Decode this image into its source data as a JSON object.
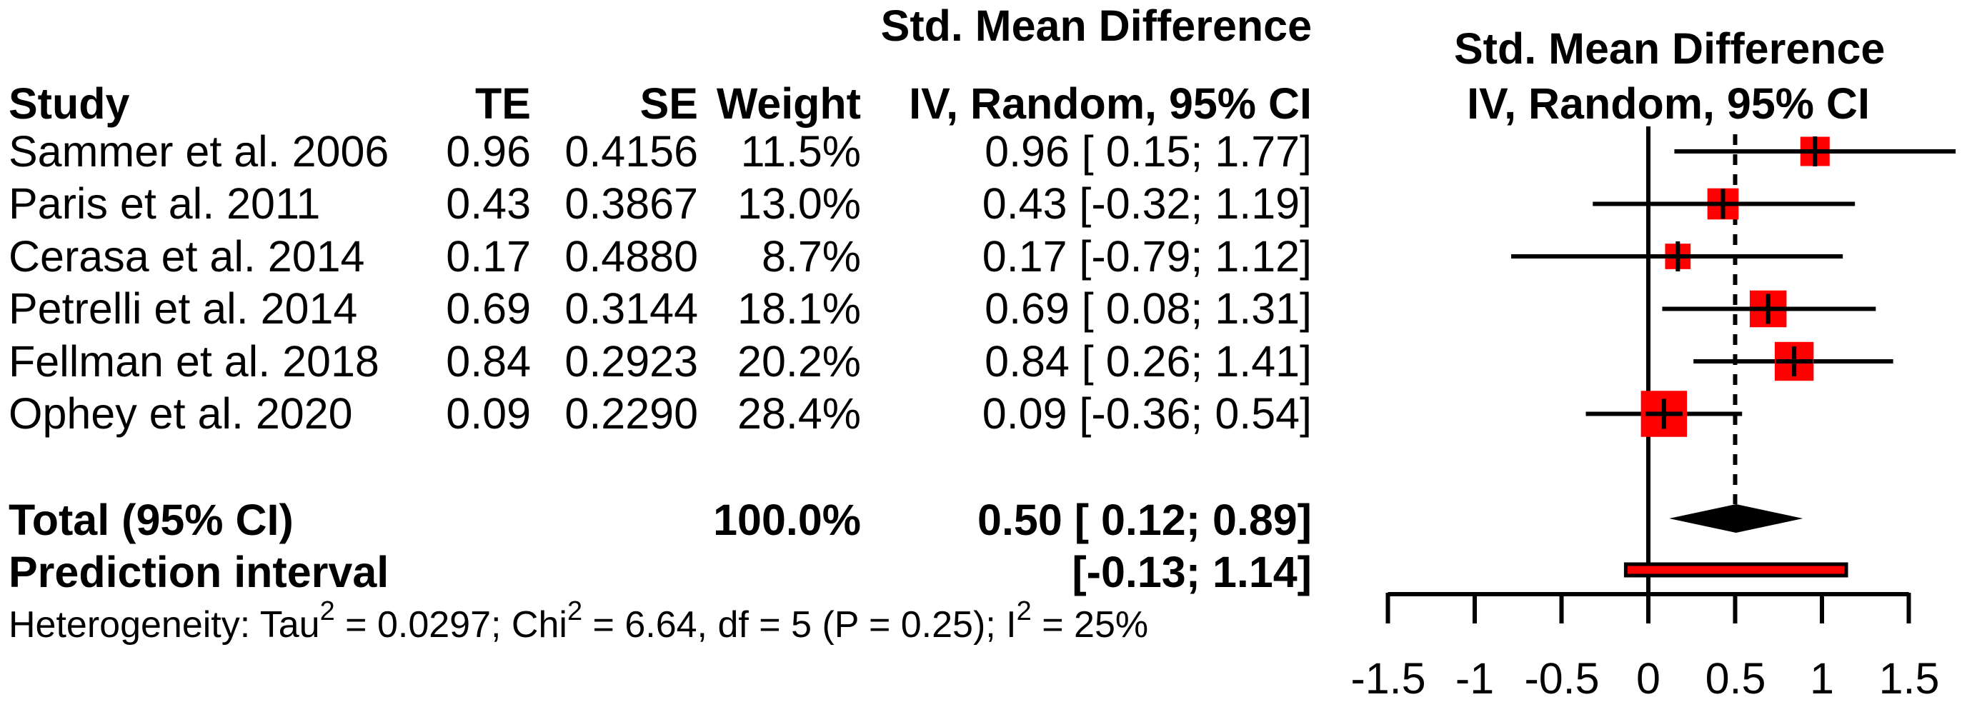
{
  "columns": {
    "study": "Study",
    "te": "TE",
    "se": "SE",
    "weight": "Weight"
  },
  "left_header": {
    "line1": "Std. Mean Difference",
    "line2": "IV, Random, 95% CI"
  },
  "right_header": {
    "line1": "Std. Mean Difference",
    "line2": "IV, Random, 95% CI"
  },
  "chart_data": {
    "type": "forest",
    "effect_measure": "Std. Mean Difference",
    "model": "IV, Random, 95% CI",
    "studies": [
      {
        "label": "Sammer et al. 2006",
        "te": "0.96",
        "se": "0.4156",
        "weight": "11.5%",
        "weight_pct": 11.5,
        "est": 0.96,
        "lower": 0.15,
        "upper": 1.77,
        "ci_text": "0.96 [ 0.15; 1.77]"
      },
      {
        "label": "Paris et al. 2011",
        "te": "0.43",
        "se": "0.3867",
        "weight": "13.0%",
        "weight_pct": 13.0,
        "est": 0.43,
        "lower": -0.32,
        "upper": 1.19,
        "ci_text": "0.43 [-0.32; 1.19]"
      },
      {
        "label": "Cerasa et al. 2014",
        "te": "0.17",
        "se": "0.4880",
        "weight": "8.7%",
        "weight_pct": 8.7,
        "est": 0.17,
        "lower": -0.79,
        "upper": 1.12,
        "ci_text": "0.17 [-0.79; 1.12]"
      },
      {
        "label": "Petrelli et al. 2014",
        "te": "0.69",
        "se": "0.3144",
        "weight": "18.1%",
        "weight_pct": 18.1,
        "est": 0.69,
        "lower": 0.08,
        "upper": 1.31,
        "ci_text": "0.69 [ 0.08; 1.31]"
      },
      {
        "label": "Fellman et al. 2018",
        "te": "0.84",
        "se": "0.2923",
        "weight": "20.2%",
        "weight_pct": 20.2,
        "est": 0.84,
        "lower": 0.26,
        "upper": 1.41,
        "ci_text": "0.84 [ 0.26; 1.41]"
      },
      {
        "label": "Ophey et al. 2020",
        "te": "0.09",
        "se": "0.2290",
        "weight": "28.4%",
        "weight_pct": 28.4,
        "est": 0.09,
        "lower": -0.36,
        "upper": 0.54,
        "ci_text": "0.09 [-0.36; 0.54]"
      }
    ],
    "total": {
      "label": "Total (95% CI)",
      "weight": "100.0%",
      "est": 0.5,
      "lower": 0.12,
      "upper": 0.89,
      "ci_text": "0.50 [ 0.12; 0.89]"
    },
    "prediction": {
      "label": "Prediction interval",
      "lower": -0.13,
      "upper": 1.14,
      "ci_text": "[-0.13; 1.14]"
    },
    "heterogeneity_segments": [
      [
        "Heterogeneity: Tau",
        false
      ],
      [
        "2",
        true
      ],
      [
        " = 0.0297; Chi",
        false
      ],
      [
        "2",
        true
      ],
      [
        " = 6.64, df = 5 (P = 0.25); I",
        false
      ],
      [
        "2",
        true
      ],
      [
        " = 25%",
        false
      ]
    ],
    "axis": {
      "ticks": [
        -1.5,
        -1,
        -0.5,
        0,
        0.5,
        1,
        1.5
      ],
      "tick_labels": [
        "-1.5",
        "-1",
        "-0.5",
        "0",
        "0.5",
        "1",
        "1.5"
      ],
      "null_line": 0,
      "pooled_line": 0.5,
      "xlim": [
        -1.5,
        1.5
      ]
    },
    "colors": {
      "square": "#ff0000",
      "diamond": "#000000",
      "line": "#000000",
      "prediction_fill": "#ff0000",
      "prediction_border": "#000000"
    }
  }
}
